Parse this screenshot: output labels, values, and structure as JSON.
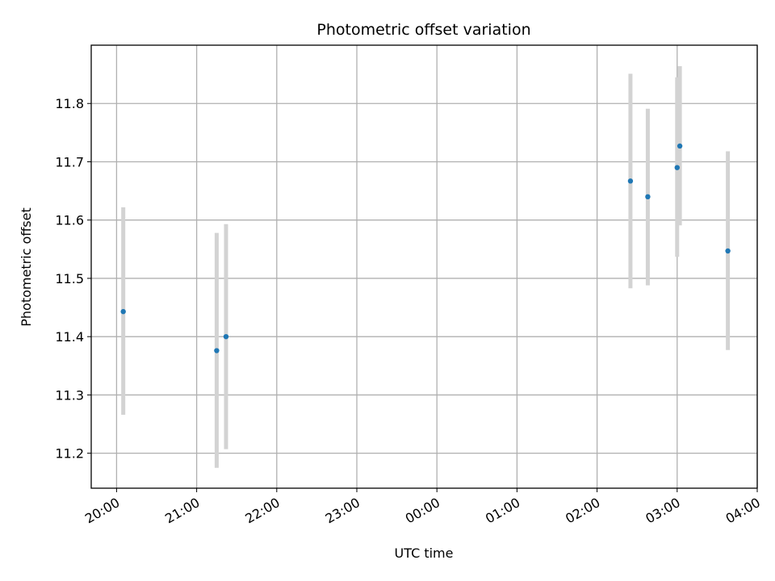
{
  "chart_data": {
    "type": "scatter",
    "title": "Photometric offset variation",
    "xlabel": "UTC time",
    "ylabel": "Photometric offset",
    "x_axis": {
      "kind": "time",
      "range": [
        "19:41",
        "04:00"
      ],
      "ticks": [
        "20:00",
        "21:00",
        "22:00",
        "23:00",
        "00:00",
        "01:00",
        "02:00",
        "03:00",
        "04:00"
      ]
    },
    "ylim": [
      11.14,
      11.9
    ],
    "y_ticks": [
      "11.2",
      "11.3",
      "11.4",
      "11.5",
      "11.6",
      "11.7",
      "11.8"
    ],
    "grid": true,
    "legend": "none",
    "series": [
      {
        "marker_color": "#1f77b4",
        "errorbar_color": "#d3d3d3",
        "points": [
          {
            "x": "20:05",
            "y": 11.443,
            "yerr_low": 11.266,
            "yerr_high": 11.622
          },
          {
            "x": "21:15",
            "y": 11.376,
            "yerr_low": 11.175,
            "yerr_high": 11.578
          },
          {
            "x": "21:22",
            "y": 11.4,
            "yerr_low": 11.207,
            "yerr_high": 11.593
          },
          {
            "x": "02:25",
            "y": 11.667,
            "yerr_low": 11.483,
            "yerr_high": 11.851
          },
          {
            "x": "02:38",
            "y": 11.64,
            "yerr_low": 11.488,
            "yerr_high": 11.791
          },
          {
            "x": "03:00",
            "y": 11.69,
            "yerr_low": 11.537,
            "yerr_high": 11.845
          },
          {
            "x": "03:02",
            "y": 11.727,
            "yerr_low": 11.591,
            "yerr_high": 11.864
          },
          {
            "x": "03:38",
            "y": 11.547,
            "yerr_low": 11.377,
            "yerr_high": 11.718
          }
        ]
      }
    ]
  }
}
